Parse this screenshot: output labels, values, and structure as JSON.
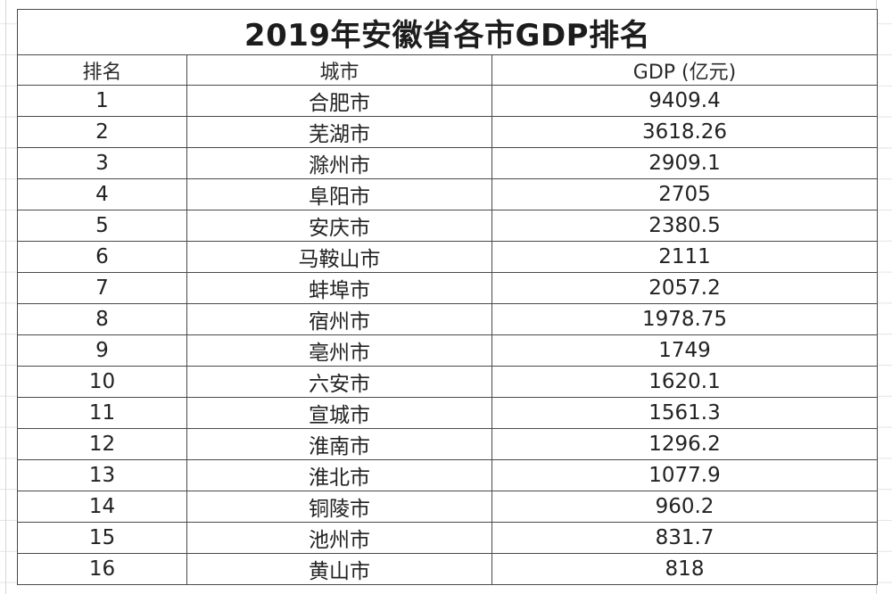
{
  "title": "2019年安徽省各市GDP排名",
  "headers": {
    "rank": "排名",
    "city": "城市",
    "gdp": "GDP (亿元)"
  },
  "rows": [
    {
      "rank": "1",
      "city": "合肥市",
      "gdp": "9409.4"
    },
    {
      "rank": "2",
      "city": "芜湖市",
      "gdp": "3618.26"
    },
    {
      "rank": "3",
      "city": "滁州市",
      "gdp": "2909.1"
    },
    {
      "rank": "4",
      "city": "阜阳市",
      "gdp": "2705"
    },
    {
      "rank": "5",
      "city": "安庆市",
      "gdp": "2380.5"
    },
    {
      "rank": "6",
      "city": "马鞍山市",
      "gdp": "2111"
    },
    {
      "rank": "7",
      "city": "蚌埠市",
      "gdp": "2057.2"
    },
    {
      "rank": "8",
      "city": "宿州市",
      "gdp": "1978.75"
    },
    {
      "rank": "9",
      "city": "亳州市",
      "gdp": "1749"
    },
    {
      "rank": "10",
      "city": "六安市",
      "gdp": "1620.1"
    },
    {
      "rank": "11",
      "city": "宣城市",
      "gdp": "1561.3"
    },
    {
      "rank": "12",
      "city": "淮南市",
      "gdp": "1296.2"
    },
    {
      "rank": "13",
      "city": "淮北市",
      "gdp": "1077.9"
    },
    {
      "rank": "14",
      "city": "铜陵市",
      "gdp": "960.2"
    },
    {
      "rank": "15",
      "city": "池州市",
      "gdp": "831.7"
    },
    {
      "rank": "16",
      "city": "黄山市",
      "gdp": "818"
    }
  ]
}
